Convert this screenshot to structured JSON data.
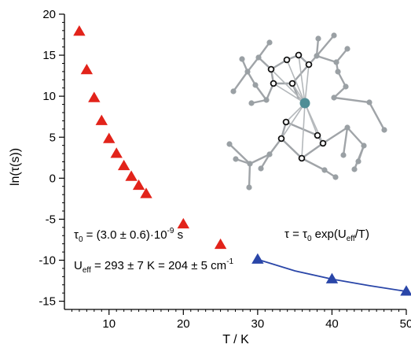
{
  "chart_data": {
    "type": "scatter",
    "xlabel": "T / K",
    "ylabel": "ln(τ(s))",
    "xlim": [
      4,
      50
    ],
    "ylim": [
      -16,
      20
    ],
    "x_ticks": [
      10,
      20,
      30,
      40,
      50
    ],
    "x_tick_labels": [
      "10",
      "20",
      "30",
      "40",
      "50"
    ],
    "y_ticks": [
      -15,
      -10,
      -5,
      0,
      5,
      10,
      15,
      20
    ],
    "y_tick_labels": [
      "-15",
      "-10",
      "-5",
      "0",
      "5",
      "10",
      "15",
      "20"
    ],
    "grid": false,
    "series": [
      {
        "marker": "triangle",
        "color": "#e2231a",
        "x": [
          6,
          7,
          8,
          9,
          10,
          11,
          12,
          13,
          14,
          15,
          20,
          25
        ],
        "y": [
          17.9,
          13.2,
          9.8,
          7.0,
          4.8,
          3.0,
          1.5,
          0.2,
          -0.9,
          -1.9,
          -5.6,
          -8.1
        ]
      },
      {
        "marker": "triangle",
        "color": "#2a46a8",
        "line": true,
        "x": [
          30,
          40,
          50
        ],
        "y": [
          -9.9,
          -12.3,
          -13.8
        ]
      }
    ],
    "fit_curve": {
      "color": "#2a46a8",
      "x": [
        30,
        35,
        40,
        45,
        50
      ],
      "y": [
        -9.9,
        -11.3,
        -12.3,
        -13.1,
        -13.8
      ]
    },
    "annotations": {
      "formula": {
        "a": "τ = τ",
        "a_sub": "0",
        "b": " exp(U",
        "b_sub": "eff",
        "c": "/T)"
      },
      "tau0": {
        "a": "τ",
        "a_sub": "0",
        "b": " = (3.0 ± 0.6)·10",
        "b_sup": "-9",
        "c": " s"
      },
      "ueff": {
        "a": "U",
        "a_sub": "eff",
        "b": " = 293 ± 7 K = 204 ± 5 cm",
        "b_sup": "-1"
      }
    },
    "inset": {
      "description_icon": "molecule-structure-icon",
      "atom_color": "#9aa0a4",
      "bond_color": "#a0a4a8",
      "dark_atom_color": "#111111",
      "metal_color": "#4f8e96"
    }
  }
}
